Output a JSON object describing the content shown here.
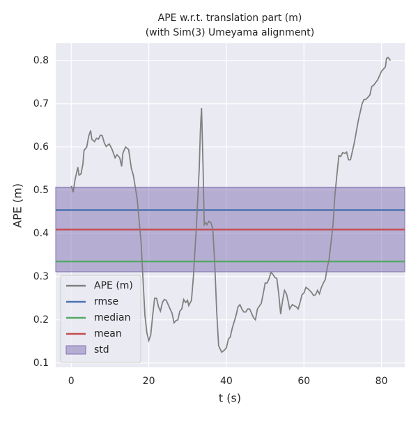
{
  "chart_data": {
    "type": "line",
    "title": "APE w.r.t. translation part (m)",
    "subtitle": "(with Sim(3) Umeyama alignment)",
    "xlabel": "t (s)",
    "ylabel": "APE (m)",
    "xlim": [
      -4,
      86
    ],
    "ylim": [
      0.09,
      0.84
    ],
    "xticks": [
      0,
      20,
      40,
      60,
      80
    ],
    "yticks": [
      0.1,
      0.2,
      0.3,
      0.4,
      0.5,
      0.6,
      0.7,
      0.8
    ],
    "grid": true,
    "legend": "lower left",
    "x": [
      0,
      0.5,
      1,
      1.7,
      2,
      2.5,
      3,
      3.3,
      4,
      4.5,
      5,
      5.3,
      6,
      6.5,
      7,
      7.5,
      8,
      8.5,
      9,
      9.8,
      10.5,
      11.3,
      11.8,
      12.5,
      13,
      13.3,
      14,
      14.8,
      15.5,
      16,
      17,
      18,
      19,
      19.5,
      20,
      20.5,
      21,
      21.5,
      22,
      22.5,
      23,
      23.5,
      24,
      24.5,
      25,
      26,
      26.5,
      27,
      27.5,
      28,
      28.5,
      29,
      29.5,
      30,
      30.3,
      31,
      31.5,
      32.3,
      33,
      33.3,
      33.6,
      34,
      34.3,
      34.7,
      35,
      35.5,
      36,
      36.5,
      37,
      37.5,
      38,
      38.8,
      39.5,
      40,
      40.5,
      41,
      41.5,
      42,
      42.5,
      43,
      43.5,
      44,
      44.5,
      45,
      45.5,
      46,
      46.5,
      47,
      47.5,
      48,
      49,
      49.5,
      50,
      50.5,
      51,
      51.5,
      52,
      52.5,
      53,
      53.5,
      54,
      54.5,
      55,
      55.5,
      56,
      56.3,
      57,
      58,
      58.5,
      59,
      59.5,
      60,
      60.5,
      61,
      62,
      62.5,
      63,
      63.5,
      64,
      64.5,
      65,
      65.5,
      66,
      66.5,
      67,
      67.5,
      68,
      69,
      69.5,
      70,
      70.5,
      71,
      71.5,
      72,
      73,
      74,
      75,
      75.5,
      76,
      77,
      77.5,
      78,
      79,
      80,
      81,
      81.3,
      81.7,
      82.3
    ],
    "series": [
      {
        "name": "APE (m)",
        "color": "#808080",
        "values": [
          0.51,
          0.495,
          0.525,
          0.553,
          0.535,
          0.537,
          0.56,
          0.592,
          0.6,
          0.625,
          0.638,
          0.618,
          0.612,
          0.62,
          0.618,
          0.627,
          0.626,
          0.61,
          0.601,
          0.607,
          0.595,
          0.575,
          0.582,
          0.575,
          0.555,
          0.585,
          0.6,
          0.594,
          0.55,
          0.535,
          0.48,
          0.38,
          0.21,
          0.17,
          0.152,
          0.165,
          0.21,
          0.25,
          0.25,
          0.23,
          0.22,
          0.24,
          0.247,
          0.245,
          0.235,
          0.215,
          0.193,
          0.198,
          0.2,
          0.22,
          0.225,
          0.247,
          0.24,
          0.245,
          0.233,
          0.245,
          0.3,
          0.42,
          0.55,
          0.64,
          0.69,
          0.55,
          0.42,
          0.425,
          0.42,
          0.428,
          0.425,
          0.41,
          0.33,
          0.22,
          0.14,
          0.125,
          0.13,
          0.135,
          0.155,
          0.16,
          0.18,
          0.195,
          0.21,
          0.23,
          0.235,
          0.225,
          0.218,
          0.218,
          0.225,
          0.225,
          0.215,
          0.205,
          0.2,
          0.225,
          0.238,
          0.26,
          0.285,
          0.285,
          0.295,
          0.31,
          0.305,
          0.298,
          0.296,
          0.26,
          0.213,
          0.245,
          0.268,
          0.26,
          0.24,
          0.225,
          0.235,
          0.23,
          0.225,
          0.24,
          0.258,
          0.262,
          0.275,
          0.272,
          0.263,
          0.256,
          0.258,
          0.268,
          0.26,
          0.275,
          0.285,
          0.293,
          0.32,
          0.34,
          0.38,
          0.42,
          0.49,
          0.58,
          0.578,
          0.587,
          0.585,
          0.588,
          0.57,
          0.57,
          0.61,
          0.66,
          0.7,
          0.71,
          0.71,
          0.72,
          0.74,
          0.743,
          0.755,
          0.775,
          0.785,
          0.805,
          0.807,
          0.8
        ]
      }
    ],
    "hlines": [
      {
        "name": "rmse",
        "color": "#4c72b0",
        "value": 0.454
      },
      {
        "name": "median",
        "color": "#55a868",
        "value": 0.335
      },
      {
        "name": "mean",
        "color": "#c44e52",
        "value": 0.409
      }
    ],
    "bands": [
      {
        "name": "std",
        "color": "#8172b2",
        "low": 0.311,
        "high": 0.507
      }
    ]
  }
}
